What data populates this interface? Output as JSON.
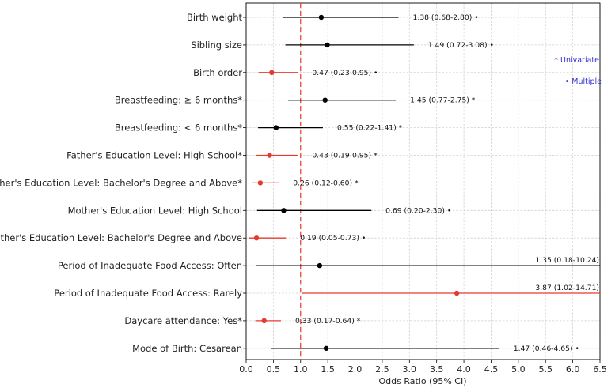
{
  "chart_data": {
    "type": "forest",
    "xlabel": "Odds Ratio (95% CI)",
    "xlim": [
      0.0,
      6.5
    ],
    "xticks": [
      "0.0",
      "0.5",
      "1.0",
      "1.5",
      "2.0",
      "2.5",
      "3.0",
      "3.5",
      "4.0",
      "4.5",
      "5.0",
      "5.5",
      "6.0",
      "6.5"
    ],
    "reference_line": 1.0,
    "grid": true,
    "legend": {
      "placement": "right",
      "entries": [
        "* Univariate",
        "• Multiple"
      ]
    },
    "colors": {
      "significant": "#e8392e",
      "nonsignificant": "#000000",
      "reference": "#e8392e",
      "legend": "#3333cc",
      "grid": "#d0d0d0"
    },
    "rows": [
      {
        "label": "Birth weight",
        "or": 1.38,
        "lower": 0.68,
        "upper": 2.8,
        "annotation": "1.38 (0.68-2.80) •",
        "significant": false
      },
      {
        "label": "Sibling size",
        "or": 1.49,
        "lower": 0.72,
        "upper": 3.08,
        "annotation": "1.49 (0.72-3.08) •",
        "significant": false
      },
      {
        "label": "Birth order",
        "or": 0.47,
        "lower": 0.23,
        "upper": 0.95,
        "annotation": "0.47 (0.23-0.95) •",
        "significant": true
      },
      {
        "label": "Breastfeeding: ≥ 6 months*",
        "or": 1.45,
        "lower": 0.77,
        "upper": 2.75,
        "annotation": "1.45 (0.77-2.75) *",
        "significant": false
      },
      {
        "label": "Breastfeeding: < 6 months*",
        "or": 0.55,
        "lower": 0.22,
        "upper": 1.41,
        "annotation": "0.55 (0.22-1.41) *",
        "significant": false
      },
      {
        "label": "Father's Education Level: High School*",
        "or": 0.43,
        "lower": 0.19,
        "upper": 0.95,
        "annotation": "0.43 (0.19-0.95) *",
        "significant": true
      },
      {
        "label": "Father's Education Level: Bachelor's Degree and Above*",
        "or": 0.26,
        "lower": 0.12,
        "upper": 0.6,
        "annotation": "0.26 (0.12-0.60) *",
        "significant": true
      },
      {
        "label": "Mother's Education Level: High School",
        "or": 0.69,
        "lower": 0.2,
        "upper": 2.3,
        "annotation": "0.69 (0.20-2.30) •",
        "significant": false
      },
      {
        "label": "Mother's Education Level: Bachelor's Degree and Above",
        "or": 0.19,
        "lower": 0.05,
        "upper": 0.73,
        "annotation": "0.19 (0.05-0.73) •",
        "significant": true
      },
      {
        "label": "Period of Inadequate Food Access: Often",
        "or": 1.35,
        "lower": 0.18,
        "upper": 10.24,
        "annotation": "1.35 (0.18-10.24)",
        "significant": false
      },
      {
        "label": "Period of Inadequate Food Access: Rarely",
        "or": 3.87,
        "lower": 1.02,
        "upper": 14.71,
        "annotation": "3.87 (1.02-14.71)",
        "significant": true
      },
      {
        "label": "Daycare attendance: Yes*",
        "or": 0.33,
        "lower": 0.17,
        "upper": 0.64,
        "annotation": "0.33 (0.17-0.64) *",
        "significant": true
      },
      {
        "label": "Mode of Birth: Cesarean",
        "or": 1.47,
        "lower": 0.46,
        "upper": 4.65,
        "annotation": "1.47 (0.46-4.65) •",
        "significant": false
      }
    ]
  }
}
